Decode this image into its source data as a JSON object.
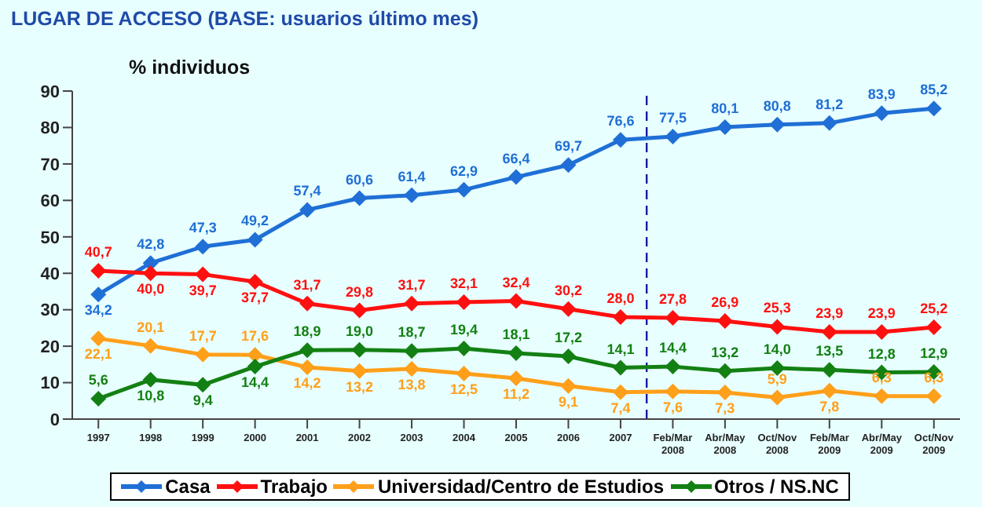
{
  "chart_data": {
    "type": "line",
    "title": "LUGAR DE ACCESO (BASE: usuarios último mes)",
    "ylabel": "% individuos",
    "categories": [
      "1997",
      "1998",
      "1999",
      "2000",
      "2001",
      "2002",
      "2003",
      "2004",
      "2005",
      "2006",
      "2007",
      "Feb/Mar 2008",
      "Abr/May 2008",
      "Oct/Nov 2008",
      "Feb/Mar 2009",
      "Abr/May 2009",
      "Oct/Nov 2009"
    ],
    "series": [
      {
        "name": "Casa",
        "color": "#1f6fd6",
        "values": [
          34.2,
          42.8,
          47.3,
          49.2,
          57.4,
          60.6,
          61.4,
          62.9,
          66.4,
          69.7,
          76.6,
          77.5,
          80.1,
          80.8,
          81.2,
          83.9,
          85.2
        ],
        "value_labels": [
          "34,2",
          "42,8",
          "47,3",
          "49,2",
          "57,4",
          "60,6",
          "61,4",
          "62,9",
          "66,4",
          "69,7",
          "76,6",
          "77,5",
          "80,1",
          "80,8",
          "81,2",
          "83,9",
          "85,2"
        ]
      },
      {
        "name": "Trabajo",
        "color": "#ff1010",
        "values": [
          40.7,
          40.0,
          39.7,
          37.7,
          31.7,
          29.8,
          31.7,
          32.1,
          32.4,
          30.2,
          28.0,
          27.8,
          26.9,
          25.3,
          23.9,
          23.9,
          25.2
        ],
        "value_labels": [
          "40,7",
          "40,0",
          "39,7",
          "37,7",
          "31,7",
          "29,8",
          "31,7",
          "32,1",
          "32,4",
          "30,2",
          "28,0",
          "27,8",
          "26,9",
          "25,3",
          "23,9",
          "23,9",
          "25,2"
        ]
      },
      {
        "name": "Universidad/Centro de Estudios",
        "color": "#ff9f1a",
        "values": [
          22.1,
          20.1,
          17.7,
          17.6,
          14.2,
          13.2,
          13.8,
          12.5,
          11.2,
          9.1,
          7.4,
          7.6,
          7.3,
          5.9,
          7.8,
          6.3,
          6.3
        ],
        "value_labels": [
          "22,1",
          "20,1",
          "17,7",
          "17,6",
          "14,2",
          "13,2",
          "13,8",
          "12,5",
          "11,2",
          "9,1",
          "7,4",
          "7,6",
          "7,3",
          "5,9",
          "7,8",
          "6,3",
          "6,3"
        ]
      },
      {
        "name": "Otros / NS.NC",
        "color": "#138013",
        "values": [
          5.6,
          10.8,
          9.4,
          14.4,
          18.9,
          19.0,
          18.7,
          19.4,
          18.1,
          17.2,
          14.1,
          14.4,
          13.2,
          14.0,
          13.5,
          12.8,
          12.9
        ],
        "value_labels": [
          "5,6",
          "10,8",
          "9,4",
          "14,4",
          "18,9",
          "19,0",
          "18,7",
          "19,4",
          "18,1",
          "17,2",
          "14,1",
          "14,4",
          "13,2",
          "14,0",
          "13,5",
          "12,8",
          "12,9"
        ]
      }
    ],
    "ylim": [
      0,
      90
    ],
    "yticks": [
      0,
      10,
      20,
      30,
      40,
      50,
      60,
      70,
      80,
      90
    ],
    "ref_lines": [
      {
        "axis": "x",
        "value": "Feb/Mar 2008",
        "color": "#1a1aa0",
        "line_style": "dashed"
      }
    ],
    "grid": false,
    "legend": "bottom",
    "marker": "diamond",
    "line_style": "solid"
  }
}
